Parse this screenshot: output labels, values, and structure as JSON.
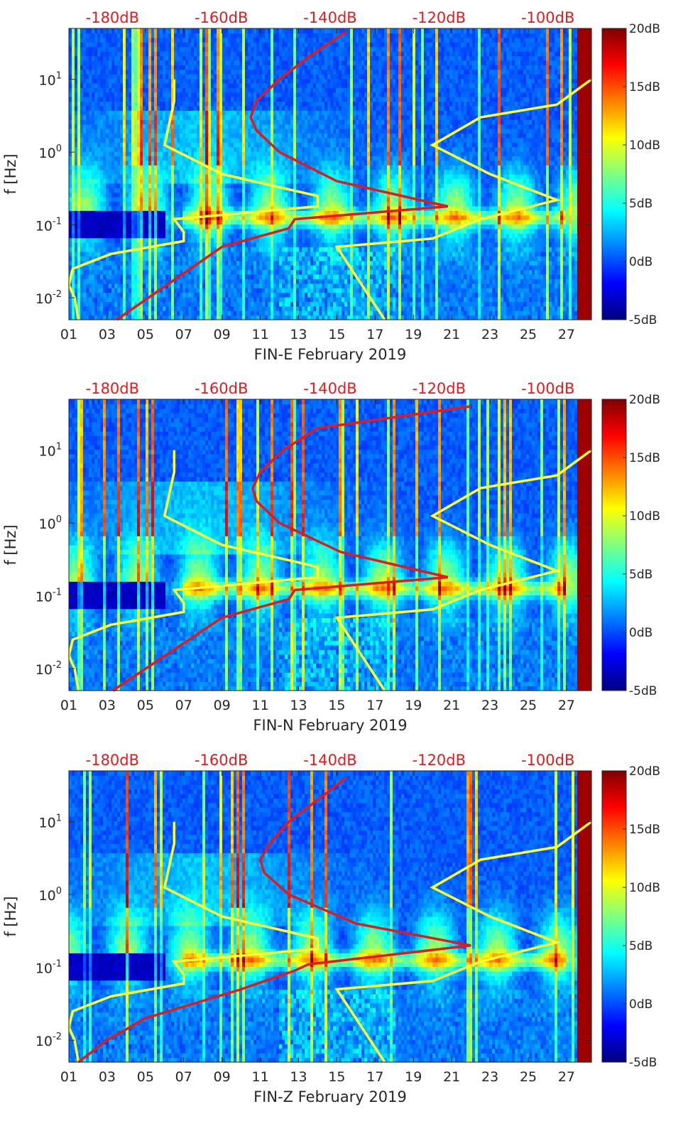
{
  "colors": {
    "background_low": "#00007f",
    "noise_model": "#ffff33",
    "psd_curve": "#e31a1c",
    "axis_text": "#262626",
    "top_axis_text": "#e41a1c"
  },
  "colormap": "jet",
  "chart_data": [
    {
      "type": "heatmap",
      "xlabel": "FIN-E February 2019",
      "ylabel": "f [Hz]",
      "x_ticks": [
        "01",
        "03",
        "05",
        "07",
        "09",
        "11",
        "13",
        "15",
        "17",
        "19",
        "21",
        "23",
        "25",
        "27"
      ],
      "x_tick_values": [
        1,
        3,
        5,
        7,
        9,
        11,
        13,
        15,
        17,
        19,
        21,
        23,
        25,
        27
      ],
      "xlim": [
        1,
        28.3
      ],
      "y_scale": "log",
      "ylim": [
        0.005,
        50
      ],
      "y_ticks": [
        0.01,
        0.1,
        1,
        10
      ],
      "y_tick_bases": [
        "10",
        "10",
        "10",
        "10"
      ],
      "y_tick_exponents": [
        "-2",
        "-1",
        "0",
        "1"
      ],
      "colorbar": {
        "ticks": [
          "20dB",
          "15dB",
          "10dB",
          "5dB",
          "0dB",
          "-5dB"
        ],
        "range": [
          -5,
          20
        ]
      },
      "top_axis": {
        "ticks": [
          "-180dB",
          "-160dB",
          "-140dB",
          "-120dB",
          "-100dB"
        ],
        "range": [
          -188,
          -92
        ]
      },
      "yellow_low_noise_model": {
        "freq_hz": [
          0.005,
          0.01,
          0.015,
          0.025,
          0.04,
          0.06,
          0.08,
          0.12,
          0.18,
          0.25,
          0.5,
          1.25,
          5,
          10
        ],
        "x_day": [
          1.5,
          1.3,
          1.0,
          1.2,
          3.2,
          7.0,
          7.0,
          6.5,
          14.0,
          14.0,
          9.0,
          6.0,
          6.5,
          6.5
        ]
      },
      "yellow_high_noise_model": {
        "freq_hz": [
          0.005,
          0.05,
          0.065,
          0.12,
          0.22,
          0.5,
          1.25,
          3,
          4.5,
          10
        ],
        "x_day": [
          17.5,
          15.0,
          20.0,
          22.5,
          26.5,
          23.0,
          20.0,
          22.5,
          26.5,
          28.3
        ]
      },
      "red_psd_curve": {
        "freq_hz": [
          0.005,
          0.05,
          0.09,
          0.12,
          0.18,
          0.4,
          1.0,
          2.0,
          3.0,
          5.0,
          10,
          20,
          45
        ],
        "x_day": [
          3.5,
          9.0,
          12.5,
          12.8,
          20.8,
          15.0,
          12.0,
          10.8,
          10.5,
          10.8,
          12.0,
          13.5,
          15.5
        ]
      }
    },
    {
      "type": "heatmap",
      "xlabel": "FIN-N February 2019",
      "ylabel": "f [Hz]",
      "x_ticks": [
        "01",
        "03",
        "05",
        "07",
        "09",
        "11",
        "13",
        "15",
        "17",
        "19",
        "21",
        "23",
        "25",
        "27"
      ],
      "x_tick_values": [
        1,
        3,
        5,
        7,
        9,
        11,
        13,
        15,
        17,
        19,
        21,
        23,
        25,
        27
      ],
      "xlim": [
        1,
        28.3
      ],
      "y_scale": "log",
      "ylim": [
        0.005,
        50
      ],
      "y_ticks": [
        0.01,
        0.1,
        1,
        10
      ],
      "y_tick_bases": [
        "10",
        "10",
        "10",
        "10"
      ],
      "y_tick_exponents": [
        "-2",
        "-1",
        "0",
        "1"
      ],
      "colorbar": {
        "ticks": [
          "20dB",
          "15dB",
          "10dB",
          "5dB",
          "0dB",
          "-5dB"
        ],
        "range": [
          -5,
          20
        ]
      },
      "top_axis": {
        "ticks": [
          "-180dB",
          "-160dB",
          "-140dB",
          "-120dB",
          "-100dB"
        ],
        "range": [
          -188,
          -92
        ]
      },
      "yellow_low_noise_model": {
        "freq_hz": [
          0.005,
          0.01,
          0.015,
          0.025,
          0.04,
          0.06,
          0.08,
          0.12,
          0.18,
          0.25,
          0.5,
          1.25,
          5,
          10
        ],
        "x_day": [
          1.5,
          1.3,
          1.0,
          1.2,
          3.2,
          7.0,
          7.0,
          6.5,
          14.0,
          14.0,
          9.0,
          6.0,
          6.5,
          6.5
        ]
      },
      "yellow_high_noise_model": {
        "freq_hz": [
          0.005,
          0.05,
          0.065,
          0.12,
          0.22,
          0.5,
          1.25,
          3,
          4.5,
          10
        ],
        "x_day": [
          17.5,
          15.0,
          20.0,
          22.5,
          26.5,
          23.0,
          20.0,
          22.5,
          26.5,
          28.3
        ]
      },
      "red_psd_curve": {
        "freq_hz": [
          0.005,
          0.05,
          0.09,
          0.12,
          0.18,
          0.4,
          1.0,
          2.0,
          3.0,
          5.0,
          10,
          20,
          40
        ],
        "x_day": [
          3.3,
          9.0,
          12.5,
          12.8,
          20.8,
          15.2,
          12.0,
          10.8,
          10.6,
          11.0,
          12.2,
          14.0,
          22.0
        ]
      }
    },
    {
      "type": "heatmap",
      "xlabel": "FIN-Z February 2019",
      "ylabel": "f [Hz]",
      "x_ticks": [
        "01",
        "03",
        "05",
        "07",
        "09",
        "11",
        "13",
        "15",
        "17",
        "19",
        "21",
        "23",
        "25",
        "27"
      ],
      "x_tick_values": [
        1,
        3,
        5,
        7,
        9,
        11,
        13,
        15,
        17,
        19,
        21,
        23,
        25,
        27
      ],
      "xlim": [
        1,
        28.3
      ],
      "y_scale": "log",
      "ylim": [
        0.005,
        50
      ],
      "y_ticks": [
        0.01,
        0.1,
        1,
        10
      ],
      "y_tick_bases": [
        "10",
        "10",
        "10",
        "10"
      ],
      "y_tick_exponents": [
        "-2",
        "-1",
        "0",
        "1"
      ],
      "colorbar": {
        "ticks": [
          "20dB",
          "15dB",
          "10dB",
          "5dB",
          "0dB",
          "-5dB"
        ],
        "range": [
          -5,
          20
        ]
      },
      "top_axis": {
        "ticks": [
          "-180dB",
          "-160dB",
          "-140dB",
          "-120dB",
          "-100dB"
        ],
        "range": [
          -188,
          -92
        ]
      },
      "yellow_low_noise_model": {
        "freq_hz": [
          0.005,
          0.01,
          0.015,
          0.025,
          0.04,
          0.06,
          0.08,
          0.12,
          0.18,
          0.25,
          0.5,
          1.25,
          5,
          10
        ],
        "x_day": [
          1.5,
          1.3,
          1.0,
          1.2,
          3.2,
          7.0,
          7.0,
          6.5,
          14.0,
          14.0,
          9.0,
          6.0,
          6.5,
          6.5
        ]
      },
      "yellow_high_noise_model": {
        "freq_hz": [
          0.005,
          0.05,
          0.065,
          0.12,
          0.22,
          0.5,
          1.25,
          3,
          4.5,
          10
        ],
        "x_day": [
          17.5,
          15.0,
          20.0,
          22.5,
          26.5,
          23.0,
          20.0,
          22.5,
          26.5,
          28.3
        ]
      },
      "red_psd_curve": {
        "freq_hz": [
          0.005,
          0.01,
          0.02,
          0.05,
          0.09,
          0.11,
          0.2,
          0.4,
          1.0,
          2.0,
          3.0,
          5.0,
          10,
          20,
          40
        ],
        "x_day": [
          1.5,
          3.0,
          5.0,
          10.0,
          12.8,
          13.5,
          22.0,
          16.0,
          12.5,
          11.2,
          11.0,
          11.5,
          12.5,
          14.0,
          15.5
        ]
      }
    }
  ]
}
